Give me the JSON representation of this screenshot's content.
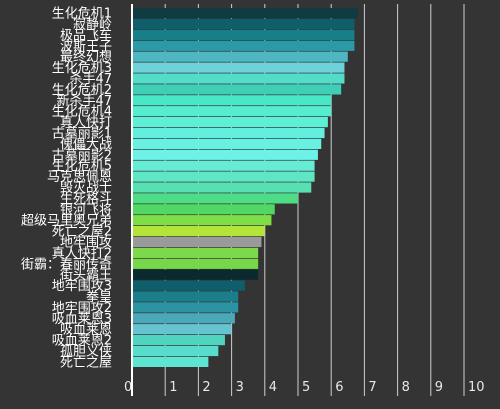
{
  "chart_data": {
    "type": "bar",
    "orientation": "horizontal",
    "xlim": [
      0,
      10
    ],
    "x_ticks": [
      "0",
      "1",
      "2",
      "3",
      "4",
      "5",
      "6",
      "7",
      "8",
      "9",
      "10"
    ],
    "grid": "vertical",
    "categories": [
      "生化危机1",
      "寂静岭",
      "极品飞车",
      "波斯王子",
      "最终幻想",
      "生化危机3",
      "杀手47",
      "生化危机2",
      "新杀手47",
      "生化危机4",
      "真人快打",
      "古墓丽影1",
      "傀儡大战",
      "古墓丽影2",
      "生化危机5",
      "马克思佩恩",
      "毁灭战士",
      "生死格斗",
      "银河飞将",
      "超级马里奥兄弟",
      "死亡之屋2",
      "地牢围攻",
      "真人快打2",
      "街霸：春丽传奇",
      "街头霸王",
      "地牢围攻3",
      "拳皇",
      "地牢围攻2",
      "吸血莱恩3",
      "吸血莱恩",
      "吸血莱恩2",
      "孤胆义侠",
      "死亡之屋"
    ],
    "values": [
      6.8,
      6.7,
      6.7,
      6.7,
      6.5,
      6.4,
      6.4,
      6.3,
      6.0,
      6.0,
      5.9,
      5.8,
      5.7,
      5.6,
      5.5,
      5.5,
      5.4,
      5.0,
      4.3,
      4.2,
      4.0,
      3.9,
      3.8,
      3.8,
      3.8,
      3.4,
      3.2,
      3.2,
      3.1,
      3.0,
      2.8,
      2.6,
      2.3
    ],
    "colors": [
      "#0f3b43",
      "#0e5f6b",
      "#167f88",
      "#2a9aa6",
      "#4fb7c2",
      "#6dd2da",
      "#53dcc8",
      "#3fcfb6",
      "#48e8c6",
      "#55ecd0",
      "#5ef0d6",
      "#63efdc",
      "#68f0e2",
      "#6ef2e8",
      "#66ecd4",
      "#5fe6c4",
      "#58e0b2",
      "#4edc86",
      "#52d664",
      "#7ede48",
      "#b3e43a",
      "#9a9a9a",
      "#7ed84c",
      "#76d848",
      "#0b2a30",
      "#0e5f6b",
      "#1a7f8b",
      "#2b93a2",
      "#4ba8b8",
      "#66c4d0",
      "#4fd4c0",
      "#58dccb",
      "#60e4d2"
    ]
  }
}
